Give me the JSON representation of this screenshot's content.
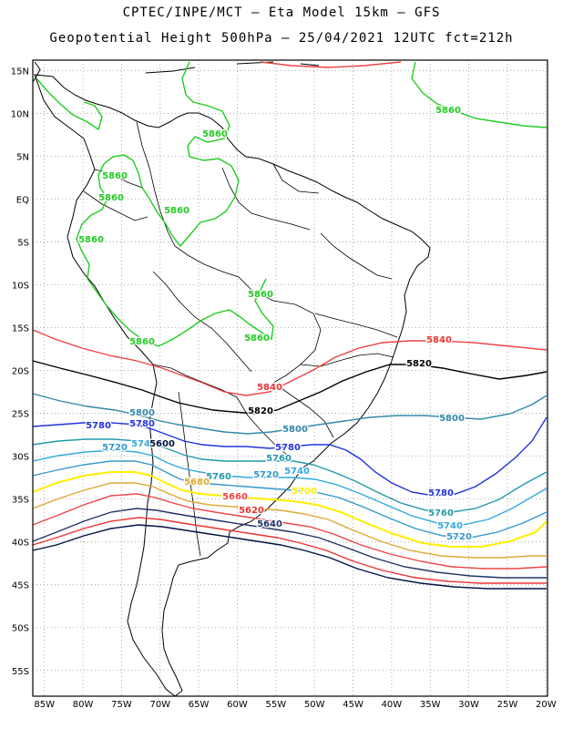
{
  "header": {
    "line1": "CPTEC/INPE/MCT –  Eta Model 15km – GFS",
    "line2": "Geopotential Height 500hPa – 25/04/2021 12UTC fct=212h"
  },
  "map": {
    "lat_ticks": [
      "15N",
      "10N",
      "5N",
      "EQ",
      "5S",
      "10S",
      "15S",
      "20S",
      "25S",
      "30S",
      "35S",
      "40S",
      "45S",
      "50S",
      "55S"
    ],
    "lon_ticks": [
      "85W",
      "80W",
      "75W",
      "70W",
      "65W",
      "60W",
      "55W",
      "50W",
      "45W",
      "40W",
      "35W",
      "30W",
      "25W",
      "20W"
    ],
    "colors": {
      "5860": "#22cc22",
      "5840": "#ee3333",
      "5820": "#000000",
      "5800": "#3388aa",
      "5780": "#2233dd",
      "5760": "#2299aa",
      "5740": "#33aadd",
      "5720": "#3399cc",
      "5700": "#ffee00",
      "5680": "#ddaa33",
      "5660": "#ee4444",
      "5640": "#223366",
      "5620": "#ee3333",
      "5600": "#001144"
    },
    "contour_labels": [
      {
        "text": "5860",
        "level": "5860"
      },
      {
        "text": "5860",
        "level": "5860"
      },
      {
        "text": "5860",
        "level": "5860"
      },
      {
        "text": "5860",
        "level": "5860"
      },
      {
        "text": "5860",
        "level": "5860"
      },
      {
        "text": "5860",
        "level": "5860"
      },
      {
        "text": "5860",
        "level": "5860"
      },
      {
        "text": "5860",
        "level": "5860"
      },
      {
        "text": "5860",
        "level": "5860"
      },
      {
        "text": "5840",
        "level": "5840"
      },
      {
        "text": "5840",
        "level": "5840"
      },
      {
        "text": "5820",
        "level": "5820"
      },
      {
        "text": "5820",
        "level": "5820"
      },
      {
        "text": "5800",
        "level": "5800"
      },
      {
        "text": "5800",
        "level": "5800"
      },
      {
        "text": "5800",
        "level": "5800"
      },
      {
        "text": "5780",
        "level": "5780"
      },
      {
        "text": "5780",
        "level": "5780"
      },
      {
        "text": "5780",
        "level": "5780"
      },
      {
        "text": "5780",
        "level": "5780"
      },
      {
        "text": "5760",
        "level": "5760"
      },
      {
        "text": "5760",
        "level": "5760"
      },
      {
        "text": "5760",
        "level": "5760"
      },
      {
        "text": "5740",
        "level": "5740"
      },
      {
        "text": "5740",
        "level": "5740"
      },
      {
        "text": "5740",
        "level": "5740"
      },
      {
        "text": "5720",
        "level": "5720"
      },
      {
        "text": "5720",
        "level": "5720"
      },
      {
        "text": "5720",
        "level": "5720"
      },
      {
        "text": "5700",
        "level": "5700"
      },
      {
        "text": "5680",
        "level": "5680"
      },
      {
        "text": "5660",
        "level": "5660"
      },
      {
        "text": "5640",
        "level": "5640"
      },
      {
        "text": "5620",
        "level": "5620"
      },
      {
        "text": "5600",
        "level": "5600"
      }
    ]
  }
}
